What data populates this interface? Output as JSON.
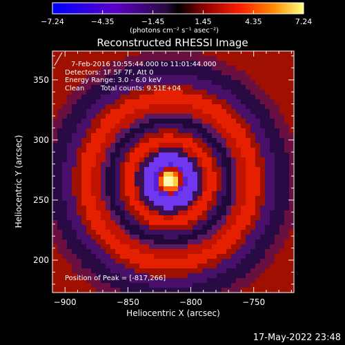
{
  "chart_data": {
    "type": "heatmap",
    "title": "Reconstructed RHESSI Image",
    "xlabel": "Heliocentric X (arcsec)",
    "ylabel": "Heliocentric Y (arcsec)",
    "xlim": [
      -910,
      -718
    ],
    "ylim": [
      173,
      374
    ],
    "x_ticks": [
      -900,
      -850,
      -800,
      -750
    ],
    "y_ticks": [
      200,
      250,
      300,
      350
    ],
    "x_tick_labels": [
      "−900",
      "−850",
      "−800",
      "−750"
    ],
    "y_tick_labels": [
      "200",
      "250",
      "300",
      "350"
    ],
    "colorbar": {
      "ticks": [
        -7.24,
        -4.35,
        -1.45,
        1.45,
        4.35,
        7.24
      ],
      "tick_labels": [
        "−7.24",
        "−4.35",
        "−1.45",
        "1.45",
        "4.35",
        "7.24"
      ],
      "unit_label": "(photons cm⁻² s⁻¹ asec⁻²)"
    },
    "peak": [
      -817,
      266
    ],
    "grid": false
  },
  "annotations": {
    "time_range": "7-Feb-2016 10:55:44.000 to 11:01:44.000",
    "detectors": "Detectors: 1F 5F 7F, Att 0",
    "energy": "Energy Range: 3.0 - 6.0 keV",
    "method": "Clean",
    "total_counts": "Total counts: 9.51E+04",
    "peak_position": "Position of Peak = [-817,266]"
  },
  "footer_date": "17-May-2022 23:48"
}
